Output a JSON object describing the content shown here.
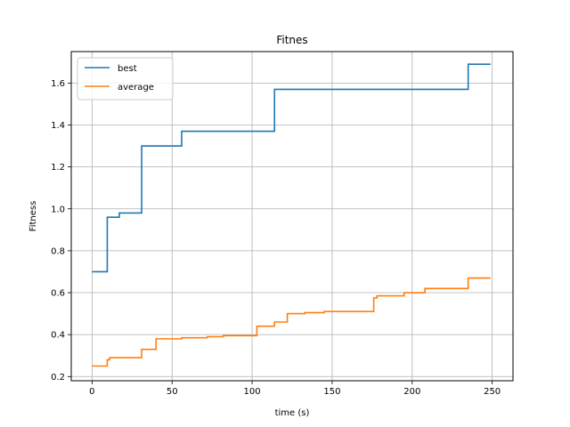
{
  "chart_data": {
    "type": "line",
    "title": "Fitnes",
    "xlabel": "time (s)",
    "ylabel": "Fitness",
    "xlim": [
      -13,
      263
    ],
    "ylim": [
      0.18,
      1.75
    ],
    "xticks": [
      0,
      50,
      100,
      150,
      200,
      250
    ],
    "yticks": [
      0.2,
      0.4,
      0.6,
      0.8,
      1.0,
      1.2,
      1.4,
      1.6
    ],
    "xtick_labels": [
      "0",
      "50",
      "100",
      "150",
      "200",
      "250"
    ],
    "ytick_labels": [
      "0.2",
      "0.4",
      "0.6",
      "0.8",
      "1.0",
      "1.2",
      "1.4",
      "1.6"
    ],
    "grid": true,
    "legend_placement": "top-left",
    "series": [
      {
        "name": "best",
        "color": "#1f77b4",
        "step": true,
        "x": [
          0,
          9.5,
          17,
          31,
          56,
          114,
          235,
          249
        ],
        "y": [
          0.7,
          0.96,
          0.98,
          1.3,
          1.37,
          1.57,
          1.69,
          1.69
        ]
      },
      {
        "name": "average",
        "color": "#ff7f0e",
        "step": true,
        "x": [
          0,
          9.5,
          11,
          17,
          31,
          40,
          56,
          72,
          82,
          103,
          114,
          122,
          133,
          145,
          176,
          178,
          195,
          208,
          235,
          249
        ],
        "y": [
          0.25,
          0.28,
          0.29,
          0.29,
          0.33,
          0.38,
          0.385,
          0.39,
          0.395,
          0.44,
          0.46,
          0.5,
          0.505,
          0.51,
          0.575,
          0.585,
          0.6,
          0.62,
          0.67,
          0.67
        ]
      }
    ]
  }
}
